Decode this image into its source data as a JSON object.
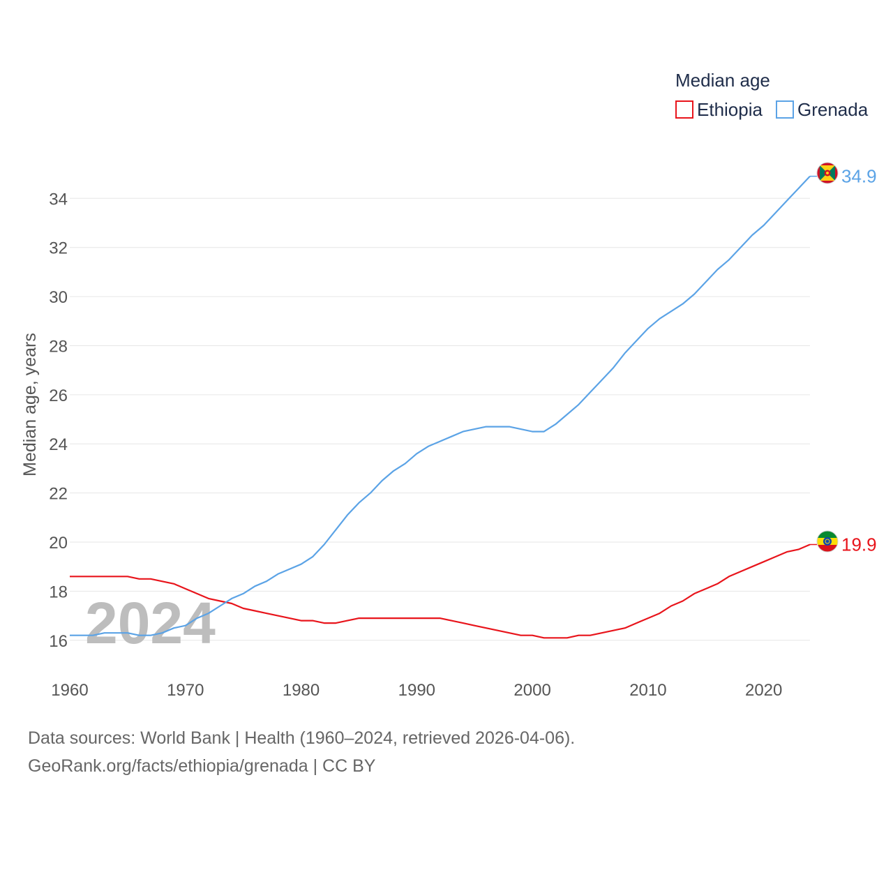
{
  "chart_data": {
    "type": "line",
    "title": "",
    "legend_title": "Median age",
    "ylabel": "Median age, years",
    "xlabel": "",
    "xlim": [
      1960,
      2024
    ],
    "ylim": [
      14.8,
      35.6
    ],
    "x_ticks": [
      1960,
      1970,
      1980,
      1990,
      2000,
      2010,
      2020
    ],
    "y_ticks": [
      16,
      18,
      20,
      22,
      24,
      26,
      28,
      30,
      32,
      34
    ],
    "grid": true,
    "legend_position": "top-right",
    "year_label": "2024",
    "x": [
      1960,
      1961,
      1962,
      1963,
      1964,
      1965,
      1966,
      1967,
      1968,
      1969,
      1970,
      1971,
      1972,
      1973,
      1974,
      1975,
      1976,
      1977,
      1978,
      1979,
      1980,
      1981,
      1982,
      1983,
      1984,
      1985,
      1986,
      1987,
      1988,
      1989,
      1990,
      1991,
      1992,
      1993,
      1994,
      1995,
      1996,
      1997,
      1998,
      1999,
      2000,
      2001,
      2002,
      2003,
      2004,
      2005,
      2006,
      2007,
      2008,
      2009,
      2010,
      2011,
      2012,
      2013,
      2014,
      2015,
      2016,
      2017,
      2018,
      2019,
      2020,
      2021,
      2022,
      2023,
      2024
    ],
    "series": [
      {
        "name": "Ethiopia",
        "color": "#e8141b",
        "end_label": "19.9",
        "flag_icon": "ethiopia-flag-icon",
        "values": [
          18.6,
          18.6,
          18.6,
          18.6,
          18.6,
          18.6,
          18.5,
          18.5,
          18.4,
          18.3,
          18.1,
          17.9,
          17.7,
          17.6,
          17.5,
          17.3,
          17.2,
          17.1,
          17.0,
          16.9,
          16.8,
          16.8,
          16.7,
          16.7,
          16.8,
          16.9,
          16.9,
          16.9,
          16.9,
          16.9,
          16.9,
          16.9,
          16.9,
          16.8,
          16.7,
          16.6,
          16.5,
          16.4,
          16.3,
          16.2,
          16.2,
          16.1,
          16.1,
          16.1,
          16.2,
          16.2,
          16.3,
          16.4,
          16.5,
          16.7,
          16.9,
          17.1,
          17.4,
          17.6,
          17.9,
          18.1,
          18.3,
          18.6,
          18.8,
          19.0,
          19.2,
          19.4,
          19.6,
          19.7,
          19.9
        ]
      },
      {
        "name": "Grenada",
        "color": "#5ba3e6",
        "end_label": "34.9",
        "flag_icon": "grenada-flag-icon",
        "values": [
          16.2,
          16.2,
          16.2,
          16.3,
          16.3,
          16.3,
          16.2,
          16.2,
          16.3,
          16.5,
          16.6,
          16.9,
          17.1,
          17.4,
          17.7,
          17.9,
          18.2,
          18.4,
          18.7,
          18.9,
          19.1,
          19.4,
          19.9,
          20.5,
          21.1,
          21.6,
          22.0,
          22.5,
          22.9,
          23.2,
          23.6,
          23.9,
          24.1,
          24.3,
          24.5,
          24.6,
          24.7,
          24.7,
          24.7,
          24.6,
          24.5,
          24.5,
          24.8,
          25.2,
          25.6,
          26.1,
          26.6,
          27.1,
          27.7,
          28.2,
          28.7,
          29.1,
          29.4,
          29.7,
          30.1,
          30.6,
          31.1,
          31.5,
          32.0,
          32.5,
          32.9,
          33.4,
          33.9,
          34.4,
          34.9
        ]
      }
    ]
  },
  "footer": {
    "sources": "Data sources: World Bank | Health (1960–2024, retrieved 2026-04-06).",
    "attribution": "GeoRank.org/facts/ethiopia/grenada | CC BY"
  }
}
